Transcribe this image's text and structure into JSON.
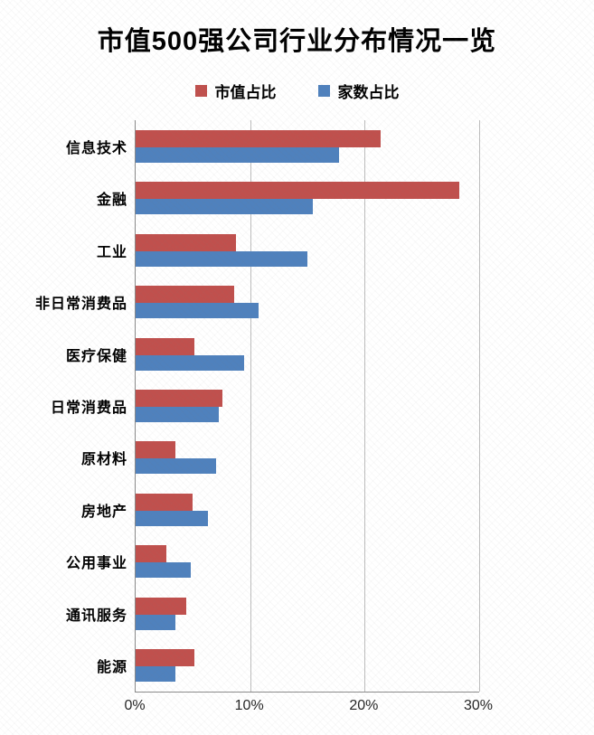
{
  "title": "市值500强公司行业分布情况一览",
  "legend": {
    "items": [
      {
        "label": "市值占比",
        "color": "#C0504D"
      },
      {
        "label": "家数占比",
        "color": "#4F81BD"
      }
    ]
  },
  "chart_data": {
    "type": "bar",
    "orientation": "horizontal",
    "title": "市值500强公司行业分布情况一览",
    "categories": [
      "信息技术",
      "金融",
      "工业",
      "非日常消费品",
      "医疗保健",
      "日常消费品",
      "原材料",
      "房地产",
      "公用事业",
      "通讯服务",
      "能源"
    ],
    "series": [
      {
        "name": "市值占比",
        "color": "#C0504D",
        "values": [
          21.4,
          28.3,
          8.8,
          8.6,
          5.1,
          7.6,
          3.5,
          5.0,
          2.7,
          4.4,
          5.1
        ]
      },
      {
        "name": "家数占比",
        "color": "#4F81BD",
        "values": [
          17.8,
          15.5,
          15.0,
          10.7,
          9.5,
          7.3,
          7.0,
          6.3,
          4.8,
          3.5,
          3.5
        ]
      }
    ],
    "xlim": [
      0,
      30
    ],
    "x_ticks": [
      {
        "value": 0,
        "label": "0%"
      },
      {
        "value": 10,
        "label": "10%"
      },
      {
        "value": 20,
        "label": "20%"
      },
      {
        "value": 30,
        "label": "30%"
      }
    ],
    "grid": true,
    "legend_position": "top",
    "xlabel": "",
    "ylabel": ""
  },
  "colors": {
    "axis": "#8a8a8a",
    "gridline": "#bdbdbd",
    "background": "#ffffff",
    "tick_text": "#262626"
  }
}
